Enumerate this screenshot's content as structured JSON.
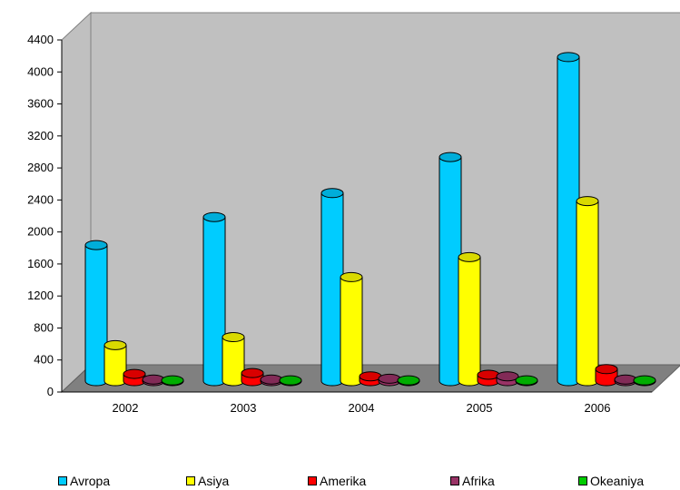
{
  "chart_data": {
    "type": "bar",
    "style": "3d-cylinder",
    "title": "",
    "xlabel": "",
    "ylabel": "",
    "categories": [
      "2002",
      "2003",
      "2004",
      "2005",
      "2006"
    ],
    "ylim": [
      0,
      4400
    ],
    "yticks": [
      0,
      400,
      800,
      1200,
      1600,
      2000,
      2400,
      2800,
      3200,
      3600,
      4000,
      4400
    ],
    "grid": false,
    "legend_position": "bottom",
    "series": [
      {
        "name": "Avropa",
        "color": "#00CCFF",
        "values": [
          1700,
          2050,
          2350,
          2800,
          4050
        ]
      },
      {
        "name": "Asiya",
        "color": "#FFFF00",
        "values": [
          450,
          550,
          1300,
          1550,
          2250
        ]
      },
      {
        "name": "Amerika",
        "color": "#FF0000",
        "values": [
          90,
          100,
          60,
          80,
          150
        ]
      },
      {
        "name": "Afrika",
        "color": "#993366",
        "values": [
          20,
          20,
          30,
          60,
          20
        ]
      },
      {
        "name": "Okeaniya",
        "color": "#00CC00",
        "values": [
          10,
          10,
          10,
          10,
          10
        ]
      }
    ]
  }
}
